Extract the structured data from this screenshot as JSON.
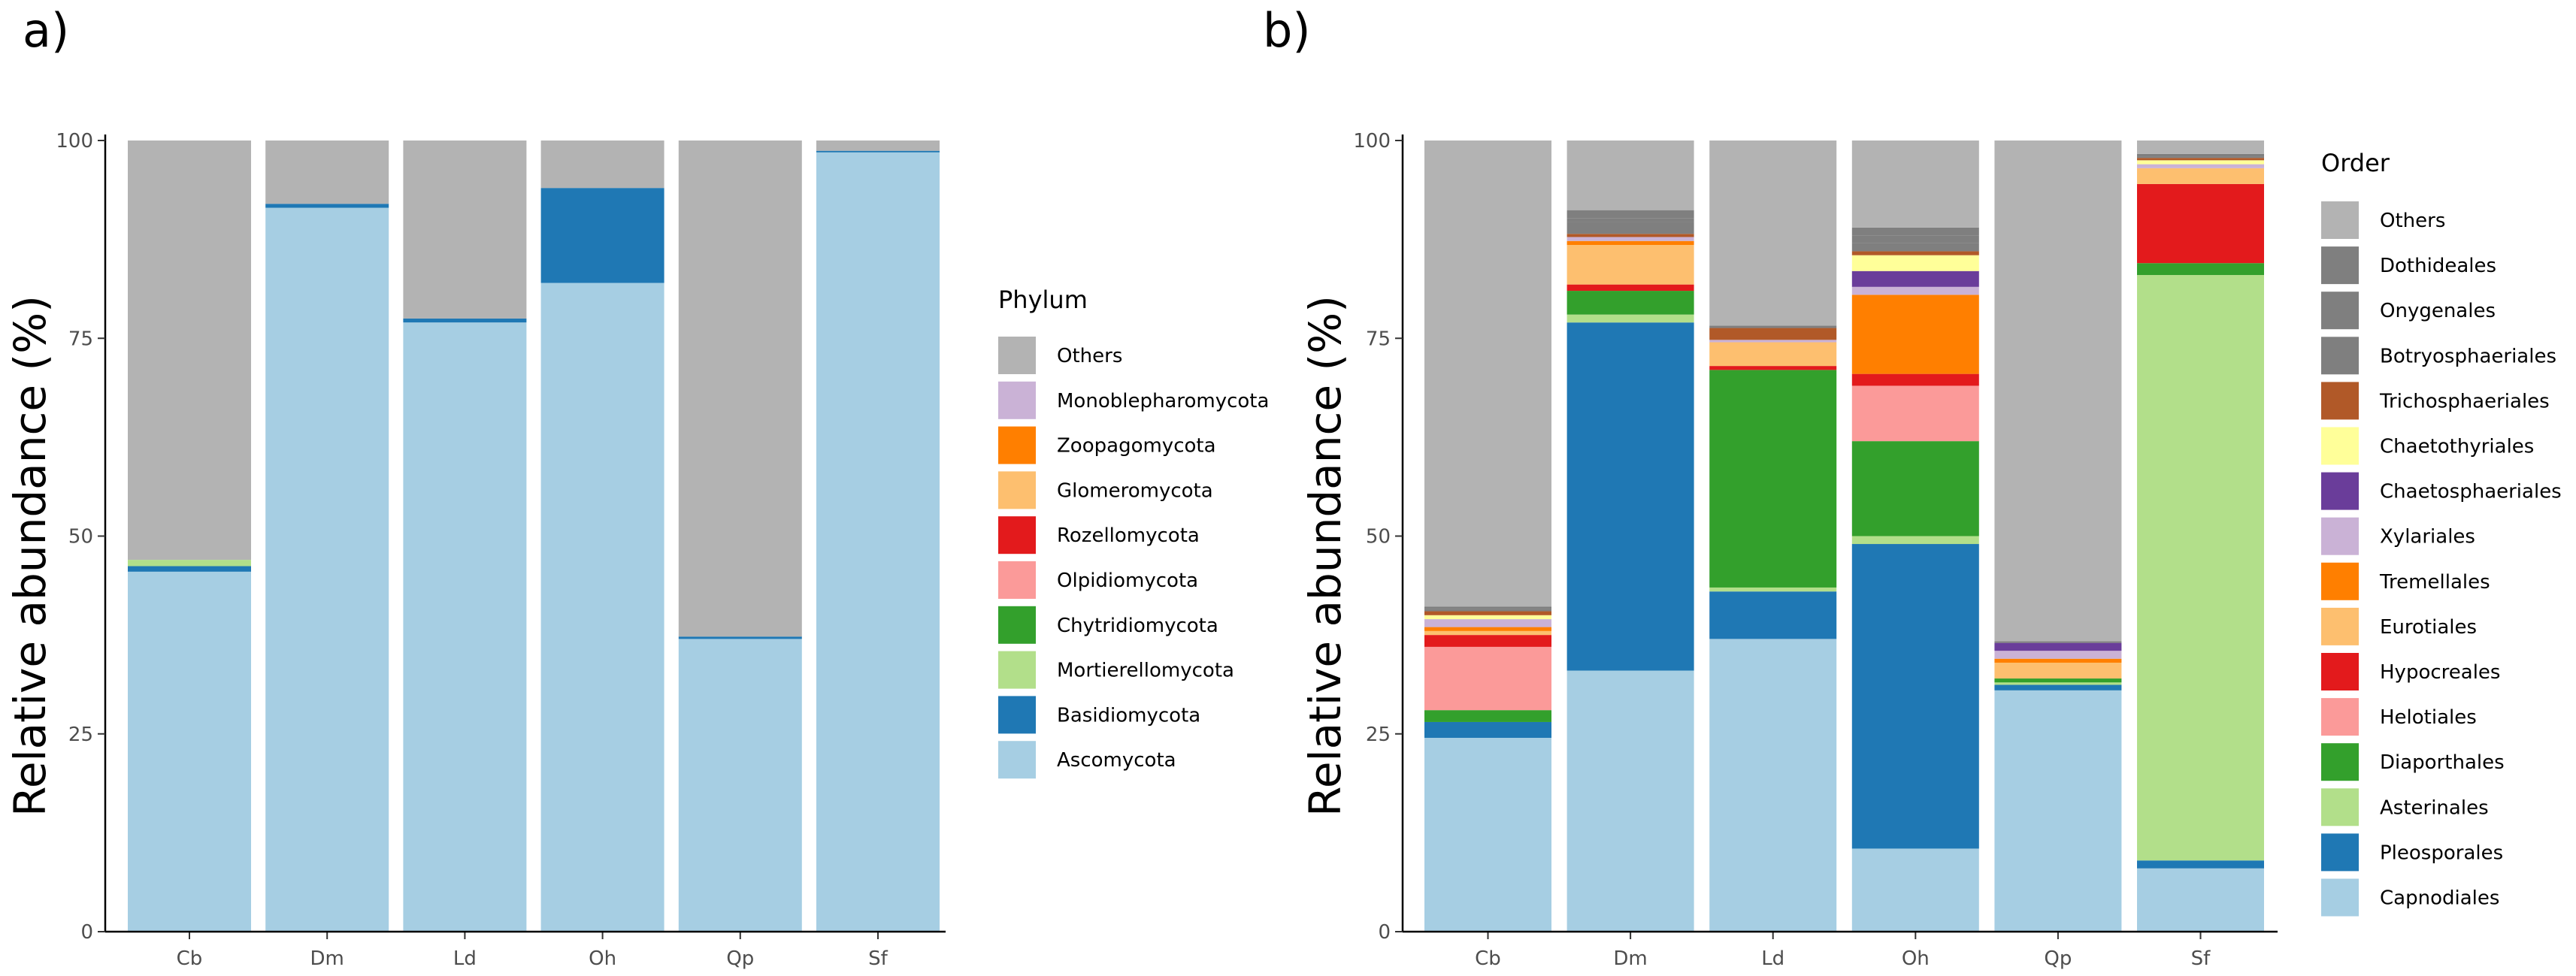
{
  "chart_data": [
    {
      "type": "bar",
      "stacked": true,
      "panel_label": "a)",
      "title": "",
      "xlabel": "",
      "ylabel": "Relative abundance (%)",
      "ylim": [
        0,
        100
      ],
      "yticks": [
        "0",
        "25",
        "50",
        "75",
        "100"
      ],
      "grid": false,
      "legend_title": "Phylum",
      "legend_position": "right",
      "categories": [
        "Cb",
        "Dm",
        "Ld",
        "Oh",
        "Qp",
        "Sf"
      ],
      "series": [
        {
          "name": "Ascomycota",
          "color": "#a6cee3",
          "values": [
            45.5,
            91.5,
            77.0,
            82.0,
            37.0,
            98.5
          ]
        },
        {
          "name": "Basidiomycota",
          "color": "#1f78b4",
          "values": [
            0.7,
            0.5,
            0.5,
            12.0,
            0.3,
            0.2
          ]
        },
        {
          "name": "Mortierellomycota",
          "color": "#b2df8a",
          "values": [
            0.8,
            0,
            0,
            0,
            0,
            0
          ]
        },
        {
          "name": "Chytridiomycota",
          "color": "#33a02c",
          "values": [
            0,
            0,
            0,
            0,
            0,
            0
          ]
        },
        {
          "name": "Olpidiomycota",
          "color": "#fb9a99",
          "values": [
            0,
            0,
            0,
            0,
            0,
            0
          ]
        },
        {
          "name": "Rozellomycota",
          "color": "#e31a1c",
          "values": [
            0,
            0,
            0,
            0,
            0,
            0
          ]
        },
        {
          "name": "Glomeromycota",
          "color": "#fdbf6f",
          "values": [
            0,
            0,
            0,
            0,
            0,
            0
          ]
        },
        {
          "name": "Zoopagomycota",
          "color": "#ff7f00",
          "values": [
            0,
            0,
            0,
            0,
            0,
            0
          ]
        },
        {
          "name": "Monoblepharomycota",
          "color": "#cab2d6",
          "values": [
            0,
            0,
            0,
            0,
            0,
            0
          ]
        },
        {
          "name": "Others",
          "color": "#b3b3b3",
          "values": [
            53.0,
            8.0,
            22.5,
            6.0,
            62.7,
            1.3
          ]
        }
      ]
    },
    {
      "type": "bar",
      "stacked": true,
      "panel_label": "b)",
      "title": "",
      "xlabel": "",
      "ylabel": "Relative abundance (%)",
      "ylim": [
        0,
        100
      ],
      "yticks": [
        "0",
        "25",
        "50",
        "75",
        "100"
      ],
      "grid": false,
      "legend_title": "Order",
      "legend_position": "right",
      "categories": [
        "Cb",
        "Dm",
        "Ld",
        "Oh",
        "Qp",
        "Sf"
      ],
      "series": [
        {
          "name": "Capnodiales",
          "color": "#a6cee3",
          "values": [
            24.5,
            33.0,
            37.0,
            10.5,
            30.5,
            8.0
          ]
        },
        {
          "name": "Pleosporales",
          "color": "#1f78b4",
          "values": [
            2.0,
            44.0,
            6.0,
            38.5,
            0.7,
            1.0
          ]
        },
        {
          "name": "Asterinales",
          "color": "#b2df8a",
          "values": [
            0,
            1.0,
            0.5,
            1.0,
            0.3,
            74.0
          ]
        },
        {
          "name": "Diaporthales",
          "color": "#33a02c",
          "values": [
            1.5,
            3.0,
            27.5,
            12.0,
            0.5,
            1.5
          ]
        },
        {
          "name": "Helotiales",
          "color": "#fb9a99",
          "values": [
            8.0,
            0,
            0,
            7.0,
            0,
            0
          ]
        },
        {
          "name": "Hypocreales",
          "color": "#e31a1c",
          "values": [
            1.5,
            0.8,
            0.5,
            1.5,
            0,
            10.0
          ]
        },
        {
          "name": "Eurotiales",
          "color": "#fdbf6f",
          "values": [
            0.5,
            5.0,
            3.0,
            0,
            2.0,
            2.0
          ]
        },
        {
          "name": "Tremellales",
          "color": "#ff7f00",
          "values": [
            0.5,
            0.5,
            0,
            10.0,
            0.5,
            0
          ]
        },
        {
          "name": "Xylariales",
          "color": "#cab2d6",
          "values": [
            1.0,
            0.5,
            0.3,
            1.0,
            1.0,
            0.5
          ]
        },
        {
          "name": "Chaetosphaeriales",
          "color": "#6a3d9a",
          "values": [
            0,
            0,
            0,
            2.0,
            1.0,
            0
          ]
        },
        {
          "name": "Chaetothyriales",
          "color": "#ffff99",
          "values": [
            0.5,
            0,
            0,
            2.0,
            0,
            0.5
          ]
        },
        {
          "name": "Trichosphaeriales",
          "color": "#b15928",
          "values": [
            0.5,
            0.4,
            1.5,
            0.5,
            0,
            0.3
          ]
        },
        {
          "name": "Botryosphaeriales",
          "color": "#7f7f7f",
          "values": [
            0.3,
            1.5,
            0.3,
            1.0,
            0,
            0
          ]
        },
        {
          "name": "Onygenales",
          "color": "#7f7f7f",
          "values": [
            0,
            0.5,
            0,
            1.0,
            0,
            0.2
          ]
        },
        {
          "name": "Dothideales",
          "color": "#7f7f7f",
          "values": [
            0.3,
            1.0,
            0,
            1.0,
            0.2,
            0.3
          ]
        },
        {
          "name": "Others",
          "color": "#b3b3b3",
          "values": [
            58.9,
            8.8,
            23.4,
            11.0,
            63.3,
            1.7
          ]
        }
      ]
    }
  ]
}
